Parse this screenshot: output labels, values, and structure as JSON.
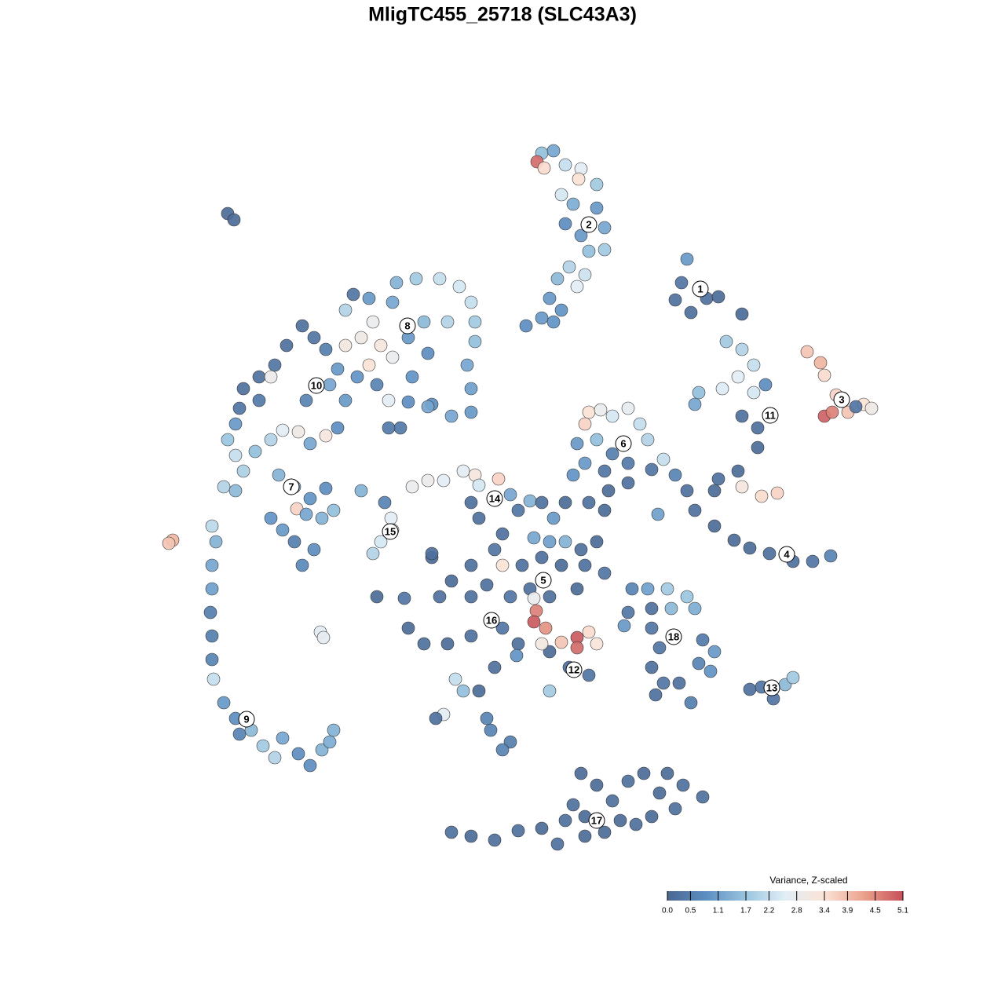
{
  "chart_data": {
    "type": "scatter",
    "title": "MligTC455_25718 (SLC43A3)",
    "xlim": [
      0,
      1280
    ],
    "ylim": [
      1280,
      0
    ],
    "x": [
      690,
      705,
      684,
      693,
      720,
      740,
      737,
      760,
      715,
      730,
      760,
      770,
      740,
      720,
      750,
      770,
      725,
      745,
      710,
      735,
      700,
      715,
      690,
      670,
      705,
      875,
      868,
      860,
      900,
      880,
      915,
      945,
      925,
      945,
      960,
      940,
      920,
      890,
      885,
      960,
      975,
      945,
      965,
      965,
      940,
      915,
      910,
      945,
      970,
      990,
      1028,
      1045,
      1050,
      1065,
      1050,
      1060,
      1080,
      1100,
      1110,
      1090,
      860,
      875,
      885,
      910,
      935,
      955,
      980,
      1010,
      1035,
      1058,
      838,
      750,
      765,
      780,
      800,
      815,
      745,
      735,
      760,
      780,
      800,
      770,
      745,
      730,
      825,
      845,
      830,
      800,
      775,
      505,
      530,
      560,
      585,
      600,
      605,
      605,
      595,
      600,
      600,
      575,
      550,
      525,
      545,
      520,
      540,
      570,
      500,
      470,
      450,
      440,
      475,
      460,
      440,
      485,
      500,
      470,
      480,
      455,
      430,
      415,
      400,
      385,
      365,
      350,
      330,
      310,
      305,
      330,
      345,
      420,
      440,
      390,
      495,
      520,
      545,
      510,
      495,
      300,
      290,
      300,
      310,
      285,
      300,
      325,
      345,
      360,
      380,
      395,
      415,
      355,
      375,
      395,
      345,
      360,
      378,
      390,
      410,
      425,
      375,
      400,
      385,
      415,
      430,
      270,
      275,
      270,
      270,
      268,
      270,
      270,
      272,
      285,
      300,
      320,
      335,
      350,
      360,
      380,
      395,
      410,
      425,
      420,
      305,
      290,
      298,
      220,
      215,
      408,
      412,
      460,
      490,
      498,
      500,
      485,
      475,
      525,
      545,
      565,
      590,
      605,
      610,
      635,
      600,
      610,
      650,
      675,
      660,
      690,
      705,
      720,
      750,
      770,
      640,
      680,
      700,
      720,
      740,
      760,
      630,
      640,
      665,
      690,
      715,
      745,
      770,
      600,
      575,
      550,
      560,
      600,
      620,
      650,
      675,
      700,
      735,
      680,
      683,
      680,
      695,
      520,
      540,
      570,
      600,
      640,
      660,
      700,
      715,
      735,
      735,
      750,
      760,
      690,
      700,
      725,
      750,
      480,
      515,
      630,
      610,
      590,
      580,
      565,
      555,
      620,
      625,
      650,
      640,
      550,
      658,
      805,
      825,
      850,
      875,
      855,
      885,
      830,
      800,
      795,
      830,
      840,
      830,
      845,
      835,
      880,
      865,
      890,
      910,
      905,
      895,
      955,
      970,
      985,
      1000,
      1010,
      575,
      600,
      630,
      660,
      690,
      710,
      720,
      740,
      745,
      760,
      780,
      800,
      820,
      840,
      850,
      870,
      895,
      830,
      810,
      770,
      745,
      730,
      790,
      860
    ],
    "y": [
      195,
      192,
      206,
      214,
      210,
      215,
      228,
      235,
      248,
      260,
      265,
      290,
      300,
      285,
      320,
      318,
      340,
      350,
      355,
      365,
      380,
      395,
      405,
      415,
      410,
      330,
      360,
      382,
      380,
      398,
      378,
      400,
      435,
      445,
      465,
      480,
      495,
      500,
      515,
      500,
      490,
      530,
      545,
      570,
      600,
      610,
      625,
      620,
      632,
      628,
      448,
      462,
      478,
      503,
      530,
      525,
      525,
      515,
      520,
      518,
      605,
      625,
      650,
      670,
      688,
      698,
      705,
      715,
      715,
      708,
      655,
      525,
      522,
      530,
      520,
      540,
      540,
      565,
      560,
      578,
      590,
      600,
      590,
      605,
      560,
      585,
      598,
      615,
      625,
      360,
      355,
      355,
      365,
      385,
      410,
      435,
      465,
      495,
      525,
      530,
      515,
      480,
      450,
      430,
      410,
      410,
      385,
      380,
      375,
      395,
      410,
      430,
      440,
      440,
      455,
      465,
      490,
      480,
      470,
      445,
      430,
      415,
      440,
      465,
      480,
      495,
      520,
      510,
      480,
      490,
      510,
      510,
      510,
      512,
      518,
      545,
      545,
      540,
      560,
      580,
      600,
      620,
      625,
      575,
      560,
      548,
      550,
      565,
      555,
      605,
      620,
      635,
      660,
      675,
      648,
      655,
      660,
      650,
      690,
      700,
      720,
      622,
      545,
      670,
      690,
      720,
      750,
      780,
      810,
      840,
      865,
      895,
      915,
      930,
      950,
      965,
      940,
      960,
      975,
      955,
      930,
      945,
      935,
      272,
      280,
      688,
      692,
      805,
      812,
      625,
      640,
      660,
      675,
      690,
      705,
      620,
      612,
      612,
      600,
      605,
      618,
      610,
      640,
      660,
      630,
      638,
      650,
      640,
      660,
      640,
      640,
      650,
      680,
      685,
      690,
      690,
      700,
      690,
      700,
      720,
      720,
      710,
      720,
      720,
      730,
      720,
      740,
      710,
      760,
      760,
      745,
      760,
      750,
      760,
      750,
      762,
      778,
      792,
      800,
      800,
      820,
      820,
      810,
      800,
      820,
      830,
      818,
      812,
      825,
      805,
      820,
      820,
      880,
      850,
      860,
      760,
      762,
      850,
      880,
      880,
      865,
      910,
      915,
      915,
      930,
      945,
      955,
      705,
      835,
      750,
      750,
      750,
      760,
      775,
      775,
      775,
      780,
      797,
      800,
      825,
      850,
      870,
      885,
      895,
      870,
      845,
      830,
      855,
      815,
      878,
      875,
      890,
      872,
      863,
      1060,
      1065,
      1070,
      1058,
      1055,
      1075,
      1045,
      985,
      1040,
      1000,
      1020,
      995,
      985,
      1010,
      985,
      1000,
      1015,
      1040,
      1050,
      1060,
      1065,
      1025,
      1045,
      1030
    ],
    "values": [
      1.6,
      1.2,
      4.8,
      3.5,
      2.2,
      2.6,
      3.4,
      1.8,
      2.4,
      1.3,
      1.0,
      1.2,
      1.0,
      0.8,
      1.6,
      1.8,
      2.0,
      2.3,
      1.5,
      2.6,
      1.0,
      0.9,
      1.0,
      0.8,
      0.9,
      1.0,
      0.3,
      0.2,
      0.2,
      0.2,
      0.1,
      0.1,
      1.8,
      2.0,
      2.2,
      2.6,
      2.5,
      1.6,
      1.2,
      2.4,
      0.8,
      0.2,
      0.2,
      0.1,
      0.1,
      0.2,
      0.1,
      3.2,
      3.5,
      3.6,
      3.8,
      4.0,
      3.5,
      3.6,
      4.9,
      4.6,
      3.8,
      3.4,
      3.0,
      0.3,
      0.6,
      0.2,
      0.2,
      0.1,
      0.1,
      0.1,
      0.2,
      0.2,
      0.3,
      0.6,
      1.1,
      3.4,
      2.8,
      2.4,
      2.7,
      2.2,
      3.6,
      1.0,
      1.6,
      0.5,
      0.4,
      0.3,
      1.0,
      0.9,
      2.0,
      2.2,
      0.3,
      0.2,
      0.1,
      1.4,
      1.8,
      2.2,
      2.4,
      2.2,
      1.8,
      1.6,
      1.2,
      1.1,
      1.0,
      1.2,
      0.8,
      0.9,
      0.8,
      1.0,
      1.5,
      2.0,
      1.2,
      1.0,
      0.3,
      2.0,
      2.8,
      3.0,
      3.1,
      3.2,
      2.8,
      3.4,
      0.6,
      0.9,
      1.0,
      0.5,
      0.3,
      0.2,
      0.2,
      0.3,
      0.2,
      0.2,
      0.3,
      0.4,
      2.9,
      1.2,
      1.0,
      0.6,
      2.6,
      0.8,
      1.2,
      0.4,
      0.4,
      1.0,
      1.7,
      2.2,
      1.9,
      2.0,
      1.5,
      1.6,
      2.0,
      2.6,
      3.0,
      1.2,
      3.2,
      1.4,
      1.3,
      0.9,
      0.9,
      1.0,
      3.6,
      1.2,
      1.4,
      1.6,
      0.5,
      0.8,
      0.7,
      0.8,
      0.8,
      2.1,
      1.4,
      1.2,
      1.1,
      0.5,
      0.5,
      0.6,
      2.2,
      1.0,
      0.8,
      1.5,
      1.8,
      2.0,
      1.2,
      0.8,
      0.8,
      1.4,
      1.4,
      1.3,
      0.6,
      0.1,
      0.1,
      4.0,
      3.8,
      2.6,
      2.7,
      1.4,
      0.6,
      2.6,
      2.8,
      2.4,
      2.0,
      2.8,
      2.9,
      2.6,
      2.6,
      3.2,
      2.4,
      3.6,
      0.2,
      0.2,
      1.2,
      1.4,
      0.3,
      0.2,
      1.0,
      0.1,
      0.2,
      0.1,
      0.2,
      1.2,
      1.1,
      1.4,
      0.2,
      0.1,
      0.3,
      3.4,
      0.2,
      0.2,
      0.1,
      0.2,
      0.3,
      0.2,
      0.1,
      0.1,
      0.2,
      0.2,
      0.2,
      0.3,
      0.2,
      0.2,
      0.1,
      2.8,
      4.6,
      5.0,
      4.4,
      0.1,
      0.2,
      0.1,
      0.2,
      0.3,
      0.2,
      0.1,
      3.8,
      5.0,
      4.8,
      3.5,
      3.3,
      3.1,
      1.8,
      0.2,
      0.3,
      0.1,
      0.3,
      0.2,
      0.1,
      1.6,
      2.2,
      2.6,
      0.2,
      0.6,
      0.6,
      0.5,
      0.6,
      0.2,
      0.9,
      0.6,
      1.1,
      1.8,
      1.7,
      1.5,
      1.3,
      0.2,
      0.3,
      1.0,
      0.3,
      0.3,
      0.2,
      0.3,
      0.2,
      0.5,
      0.2,
      0.6,
      1.0,
      0.9,
      0.4,
      0.2,
      0.3,
      0.3,
      1.5,
      1.8,
      0.2,
      0.1,
      0.2,
      0.2,
      0.1,
      0.2,
      0.2,
      0.1,
      0.1,
      0.1,
      0.2,
      0.2,
      0.1,
      0.1,
      0.1,
      0.2,
      0.2,
      0.1,
      0.2,
      0.1,
      0.1,
      0.2,
      0.1,
      0.2
    ],
    "annotations": [
      {
        "text": "1",
        "x": 892,
        "y": 368
      },
      {
        "text": "2",
        "x": 750,
        "y": 286
      },
      {
        "text": "3",
        "x": 1072,
        "y": 509
      },
      {
        "text": "4",
        "x": 1002,
        "y": 706
      },
      {
        "text": "5",
        "x": 692,
        "y": 739
      },
      {
        "text": "6",
        "x": 794,
        "y": 565
      },
      {
        "text": "7",
        "x": 371,
        "y": 620
      },
      {
        "text": "8",
        "x": 519,
        "y": 415
      },
      {
        "text": "9",
        "x": 314,
        "y": 916
      },
      {
        "text": "10",
        "x": 403,
        "y": 491
      },
      {
        "text": "11",
        "x": 981,
        "y": 529
      },
      {
        "text": "12",
        "x": 731,
        "y": 853
      },
      {
        "text": "13",
        "x": 983,
        "y": 876
      },
      {
        "text": "14",
        "x": 630,
        "y": 635
      },
      {
        "text": "15",
        "x": 497,
        "y": 677
      },
      {
        "text": "16",
        "x": 626,
        "y": 790
      },
      {
        "text": "17",
        "x": 760,
        "y": 1045
      },
      {
        "text": "18",
        "x": 858,
        "y": 811
      }
    ],
    "colorbar": {
      "title": "Variance, Z-scaled",
      "clim": [
        0,
        5.1
      ],
      "colors": [
        "#4a6791",
        "#5d8fc3",
        "#9ac5df",
        "#e1eef6",
        "#fbe3d6",
        "#eba28c",
        "#c6505a"
      ],
      "ticks": [
        {
          "value": 0,
          "label": "0.0"
        },
        0.5,
        1.1,
        1.7,
        2.2,
        2.8,
        3.4,
        3.9,
        4.5,
        5.1
      ]
    }
  }
}
